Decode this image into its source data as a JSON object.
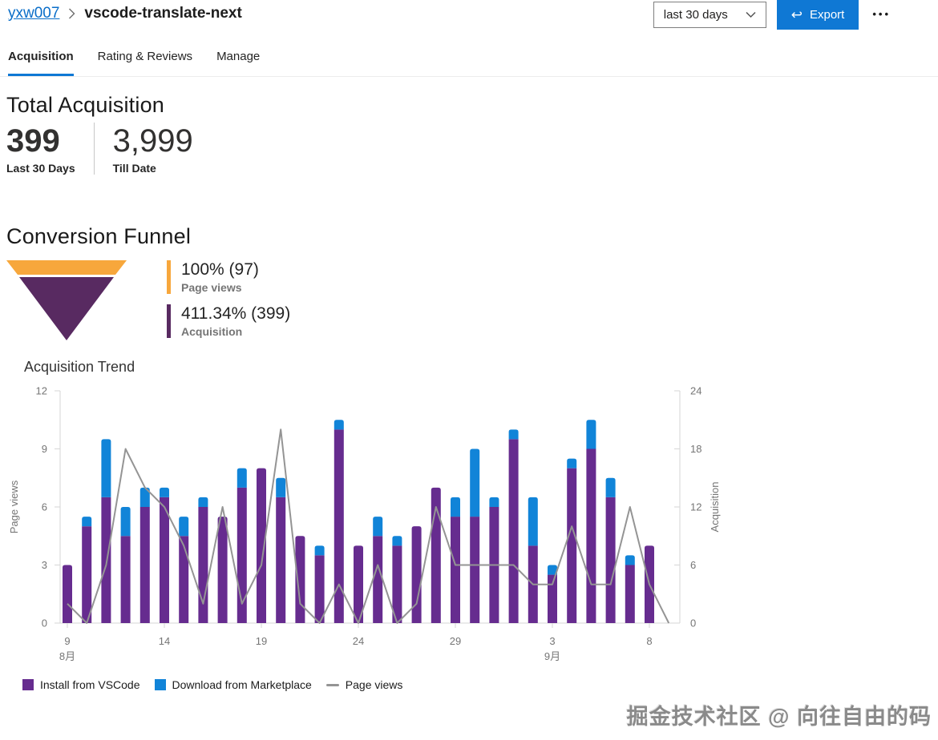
{
  "header": {
    "breadcrumb": {
      "publisher": "yxw007",
      "extension": "vscode-translate-next"
    },
    "period_dropdown": {
      "value": "last 30 days"
    },
    "export_button": {
      "label": "Export",
      "icon": "↩",
      "color": "#0f78d4"
    },
    "more_menu": {
      "icon": "•••"
    }
  },
  "tabs": [
    {
      "label": "Acquisition",
      "active": true
    },
    {
      "label": "Rating & Reviews",
      "active": false
    },
    {
      "label": "Manage",
      "active": false
    }
  ],
  "total_acquisition": {
    "title": "Total Acquisition",
    "stats": [
      {
        "value": "399",
        "label": "Last 30 Days"
      },
      {
        "value": "3,999",
        "label": "Till Date"
      }
    ]
  },
  "funnel": {
    "title": "Conversion Funnel",
    "stages": [
      {
        "pct": "100% (97)",
        "label": "Page views",
        "color": "#f7a73c"
      },
      {
        "pct": "411.34% (399)",
        "label": "Acquisition",
        "color": "#582a61"
      }
    ]
  },
  "chart_data": {
    "type": "bar",
    "title": "Acquisition Trend",
    "subtitle": "stacked daily acquisition bars (right axis) with page-views line (left axis)",
    "left_axis": {
      "label": "Page views",
      "ticks": [
        0,
        3,
        6,
        9,
        12
      ],
      "max": 12
    },
    "right_axis": {
      "label": "Acquisition",
      "ticks": [
        0,
        6,
        12,
        18,
        24
      ],
      "max": 24
    },
    "x": [
      "8/9",
      "8/10",
      "8/11",
      "8/12",
      "8/13",
      "8/14",
      "8/15",
      "8/16",
      "8/17",
      "8/18",
      "8/19",
      "8/20",
      "8/21",
      "8/22",
      "8/23",
      "8/24",
      "8/25",
      "8/26",
      "8/27",
      "8/28",
      "8/29",
      "8/30",
      "8/31",
      "9/1",
      "9/2",
      "9/3",
      "9/4",
      "9/5",
      "9/6",
      "9/7",
      "9/8",
      "9/9"
    ],
    "x_ticks": [
      {
        "index": 0,
        "label": "9",
        "sub": "8月"
      },
      {
        "index": 5,
        "label": "14"
      },
      {
        "index": 10,
        "label": "19"
      },
      {
        "index": 15,
        "label": "24"
      },
      {
        "index": 20,
        "label": "29"
      },
      {
        "index": 25,
        "label": "3",
        "sub": "9月"
      },
      {
        "index": 30,
        "label": "8"
      }
    ],
    "series": [
      {
        "name": "Install from VSCode",
        "type": "bar",
        "axis": "right",
        "color": "#662c8f",
        "values": [
          6,
          10,
          13,
          9,
          12,
          13,
          9,
          12,
          11,
          14,
          16,
          13,
          9,
          7,
          20,
          8,
          9,
          8,
          10,
          14,
          11,
          11,
          12,
          19,
          8,
          5,
          16,
          18,
          13,
          6,
          8,
          0
        ]
      },
      {
        "name": "Download from Marketplace",
        "type": "bar",
        "axis": "right",
        "color": "#1184d8",
        "values": [
          0,
          1,
          6,
          3,
          2,
          1,
          2,
          1,
          0,
          2,
          0,
          2,
          0,
          1,
          1,
          0,
          2,
          1,
          0,
          0,
          2,
          7,
          1,
          1,
          5,
          1,
          1,
          3,
          2,
          1,
          0,
          0
        ]
      },
      {
        "name": "Page views",
        "type": "line",
        "axis": "left",
        "color": "#949494",
        "values": [
          1,
          0,
          3,
          9,
          7,
          6,
          4,
          1,
          6,
          1,
          3,
          10,
          1,
          0,
          2,
          0,
          3,
          0,
          1,
          6,
          3,
          3,
          3,
          3,
          2,
          2,
          5,
          2,
          2,
          6,
          2,
          0
        ]
      }
    ],
    "totals": {
      "acquisition_sum": 399,
      "page_views_sum": 97
    }
  },
  "watermark": "掘金技术社区 @ 向往自由的码"
}
